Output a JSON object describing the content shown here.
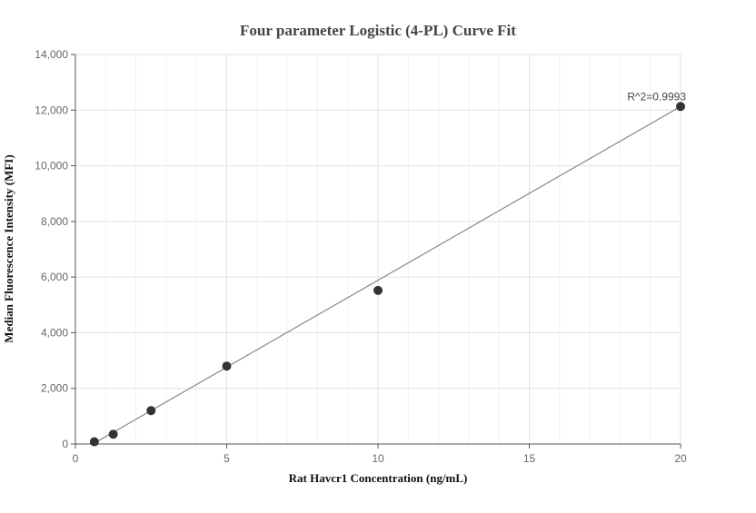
{
  "chart_data": {
    "type": "scatter",
    "title": "Four parameter Logistic (4-PL) Curve Fit",
    "xlabel": "Rat Havcr1 Concentration (ng/mL)",
    "ylabel": "Median Fluorescence Intensity (MFI)",
    "xlim": [
      0,
      20
    ],
    "ylim": [
      0,
      14000
    ],
    "x_ticks": [
      0,
      5,
      10,
      15,
      20
    ],
    "y_ticks": [
      0,
      2000,
      4000,
      6000,
      8000,
      10000,
      12000,
      14000
    ],
    "x_tick_labels": [
      "0",
      "5",
      "10",
      "15",
      "20"
    ],
    "y_tick_labels": [
      "0",
      "2,000",
      "4,000",
      "6,000",
      "8,000",
      "10,000",
      "12,000",
      "14,000"
    ],
    "grid": true,
    "series": [
      {
        "type": "points",
        "x": [
          0.625,
          1.25,
          2.5,
          5,
          10,
          20
        ],
        "y": [
          80,
          350,
          1200,
          2800,
          5520,
          12130
        ],
        "color": "#333333"
      },
      {
        "type": "fit_line",
        "x": [
          0.625,
          20
        ],
        "y": [
          30,
          12130
        ],
        "color": "#888888"
      }
    ],
    "annotations": [
      {
        "text": "R^2=0.9993",
        "x": 20,
        "y": 12130
      }
    ]
  }
}
